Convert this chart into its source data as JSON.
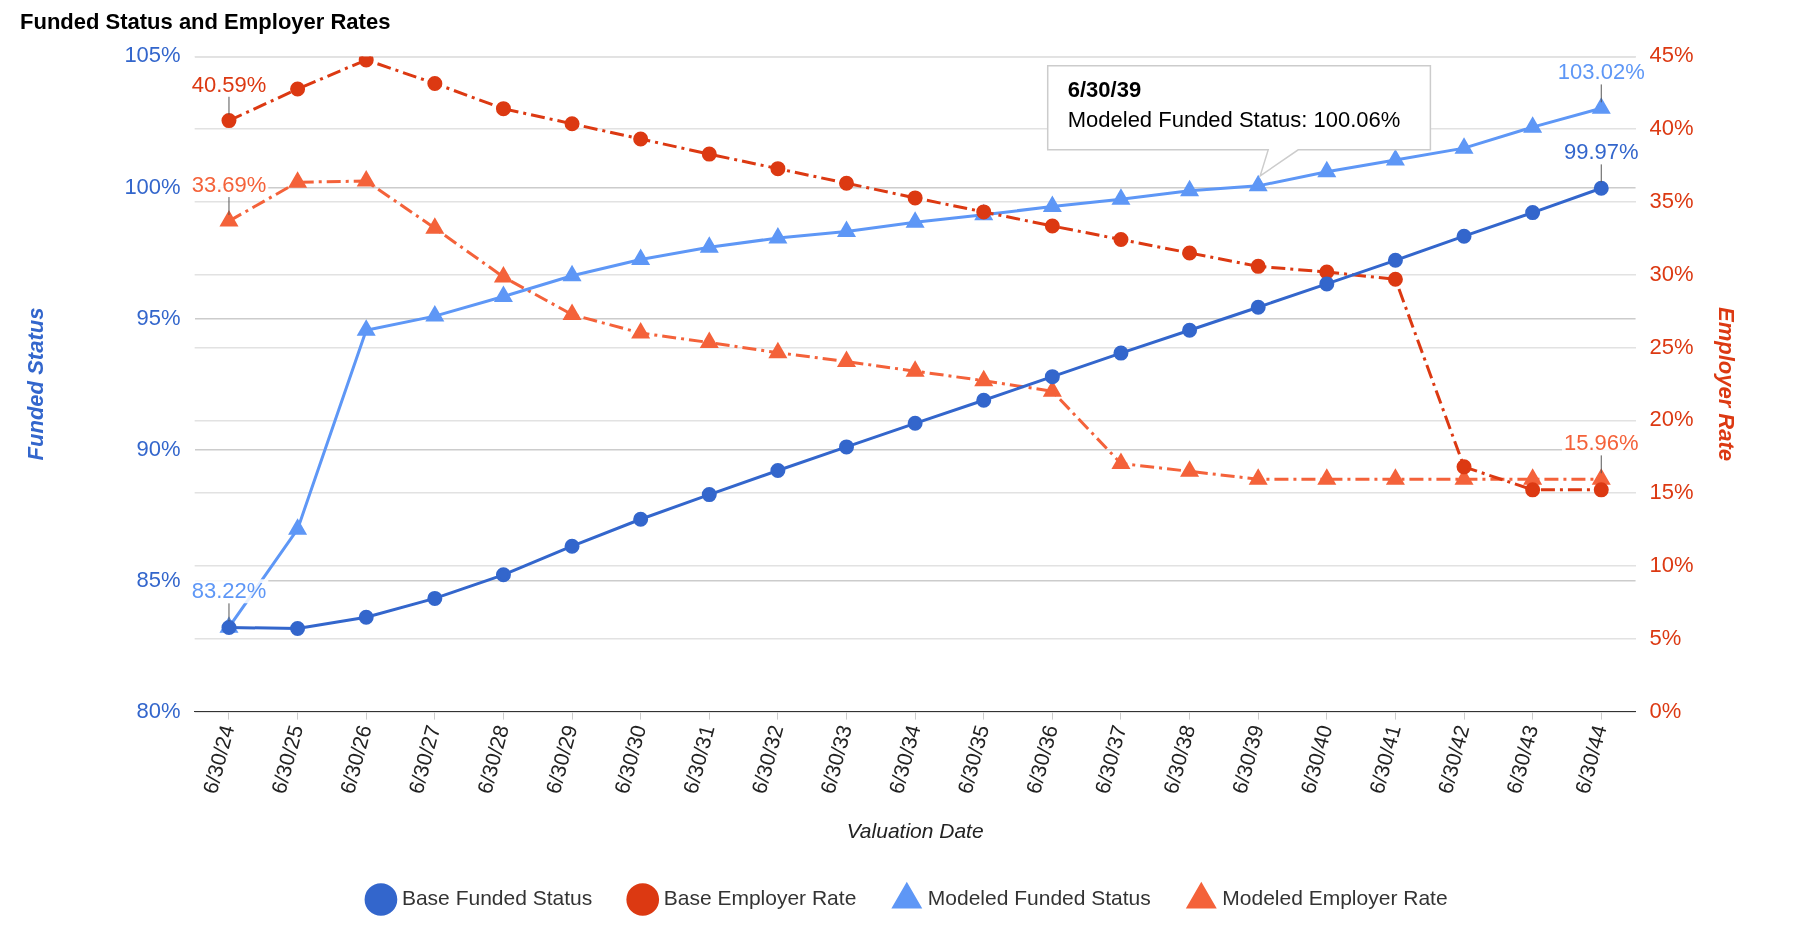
{
  "chart_data": {
    "type": "line",
    "title": "Funded Status and Employer Rates",
    "xlabel": "Valuation Date",
    "ylabel": "Funded Status",
    "y2label": "Employer Rate",
    "categories": [
      "6/30/24",
      "6/30/25",
      "6/30/26",
      "6/30/27",
      "6/30/28",
      "6/30/29",
      "6/30/30",
      "6/30/31",
      "6/30/32",
      "6/30/33",
      "6/30/34",
      "6/30/35",
      "6/30/36",
      "6/30/37",
      "6/30/38",
      "6/30/39",
      "6/30/40",
      "6/30/41",
      "6/30/42",
      "6/30/43",
      "6/30/44"
    ],
    "ylim": [
      80,
      105
    ],
    "yticks": [
      {
        "value": 80,
        "label": "80%"
      },
      {
        "value": 85,
        "label": "85%"
      },
      {
        "value": 90,
        "label": "90%"
      },
      {
        "value": 95,
        "label": "95%"
      },
      {
        "value": 100,
        "label": "100%"
      },
      {
        "value": 105,
        "label": "105%"
      }
    ],
    "y2lim": [
      0,
      45
    ],
    "y2ticks": [
      {
        "value": 0,
        "label": "0%"
      },
      {
        "value": 5,
        "label": "5%"
      },
      {
        "value": 10,
        "label": "10%"
      },
      {
        "value": 15,
        "label": "15%"
      },
      {
        "value": 20,
        "label": "20%"
      },
      {
        "value": 25,
        "label": "25%"
      },
      {
        "value": 30,
        "label": "30%"
      },
      {
        "value": 35,
        "label": "35%"
      },
      {
        "value": 40,
        "label": "40%"
      },
      {
        "value": 45,
        "label": "45%"
      }
    ],
    "grid": true,
    "legend": "bottom",
    "series": [
      {
        "name": "Base Funded Status",
        "color": "#3366cc",
        "marker": "circle",
        "line_style": "solid",
        "values": [
          83.21,
          83.17,
          83.6,
          84.32,
          85.22,
          86.31,
          87.34,
          88.28,
          89.2,
          90.1,
          91.0,
          91.88,
          92.78,
          93.68,
          94.55,
          95.43,
          96.32,
          97.22,
          98.14,
          99.04,
          99.97
        ],
        "value_labels": [
          null,
          null,
          null,
          null,
          null,
          null,
          null,
          null,
          null,
          null,
          null,
          null,
          null,
          null,
          null,
          null,
          null,
          null,
          null,
          null,
          "99.97%"
        ]
      },
      {
        "name": "Base Employer Rate",
        "color": "#dc3912",
        "marker": "circle",
        "line_style": "dashed",
        "axis": "y2",
        "values": [
          40.59,
          42.76,
          44.76,
          43.14,
          41.41,
          40.37,
          39.33,
          38.29,
          37.29,
          36.29,
          35.28,
          34.32,
          33.35,
          32.42,
          31.5,
          30.58,
          30.19,
          29.69,
          16.81,
          15.23,
          15.23
        ],
        "value_labels": [
          "40.59%",
          null,
          null,
          null,
          null,
          null,
          null,
          null,
          null,
          null,
          null,
          null,
          null,
          null,
          null,
          null,
          null,
          null,
          null,
          null,
          null
        ]
      },
      {
        "name": "Modeled Funded Status",
        "color": "#5e97f6",
        "marker": "triangle",
        "line_style": "solid",
        "values": [
          83.22,
          86.96,
          94.55,
          95.09,
          95.84,
          96.63,
          97.25,
          97.72,
          98.07,
          98.32,
          98.67,
          98.96,
          99.27,
          99.55,
          99.87,
          100.06,
          100.6,
          101.05,
          101.5,
          102.3,
          103.02
        ],
        "value_labels": [
          "83.22%",
          null,
          null,
          null,
          null,
          null,
          null,
          null,
          null,
          null,
          null,
          null,
          null,
          null,
          null,
          null,
          null,
          null,
          null,
          null,
          "103.02%"
        ]
      },
      {
        "name": "Modeled Employer Rate",
        "color": "#f4623a",
        "marker": "triangle",
        "line_style": "dashed",
        "axis": "y2",
        "values": [
          33.69,
          36.36,
          36.44,
          33.2,
          29.85,
          27.27,
          26.0,
          25.35,
          24.65,
          24.04,
          23.38,
          22.73,
          22.0,
          17.04,
          16.5,
          15.96,
          15.96,
          15.96,
          15.96,
          15.96,
          15.96
        ],
        "value_labels": [
          "33.69%",
          null,
          null,
          null,
          null,
          null,
          null,
          null,
          null,
          null,
          null,
          null,
          null,
          null,
          null,
          null,
          null,
          null,
          null,
          null,
          "15.96%"
        ]
      }
    ],
    "annotations": [
      {
        "text": "6/30/39\nModeled Funded Status: 100.06%",
        "x": "6/30/39",
        "y": 100.06
      }
    ]
  }
}
